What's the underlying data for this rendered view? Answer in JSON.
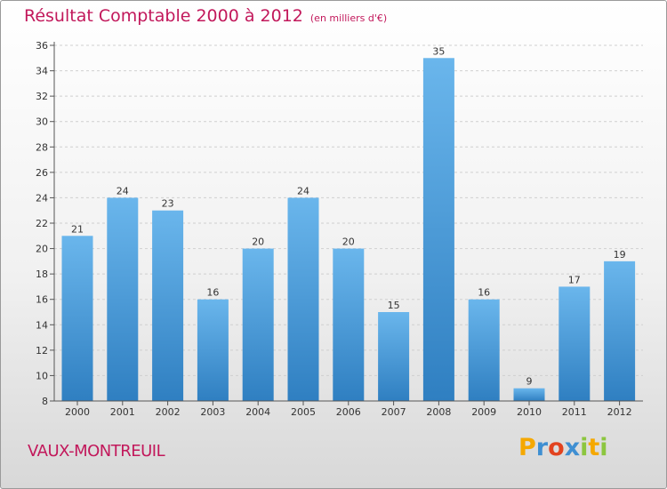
{
  "header": {
    "title": "Résultat Comptable 2000 à 2012",
    "subtitle": "(en milliers d'€)"
  },
  "footer": {
    "commune": "VAUX-MONTREUIL",
    "logo": {
      "letters": [
        "P",
        "r",
        "o",
        "x",
        "i",
        "t",
        "i"
      ],
      "colors": [
        "#f5a800",
        "#3f8fd2",
        "#e2431f",
        "#3f8fd2",
        "#8cc63f",
        "#f5a800",
        "#8cc63f"
      ]
    }
  },
  "colors": {
    "bar_light": "#6ab6ec",
    "bar_dark": "#2f7fc1",
    "title": "#c2185b"
  },
  "chart_data": {
    "type": "bar",
    "title": "Résultat Comptable 2000 à 2012",
    "subtitle": "(en milliers d'€)",
    "categories": [
      "2000",
      "2001",
      "2002",
      "2003",
      "2004",
      "2005",
      "2006",
      "2007",
      "2008",
      "2009",
      "2010",
      "2011",
      "2012"
    ],
    "values": [
      21,
      24,
      23,
      16,
      20,
      24,
      20,
      15,
      35,
      16,
      9,
      17,
      19
    ],
    "ylim": [
      8,
      36
    ],
    "yticks": [
      8,
      10,
      12,
      14,
      16,
      18,
      20,
      22,
      24,
      26,
      28,
      30,
      32,
      34,
      36
    ],
    "grid": true,
    "data_labels": true
  }
}
